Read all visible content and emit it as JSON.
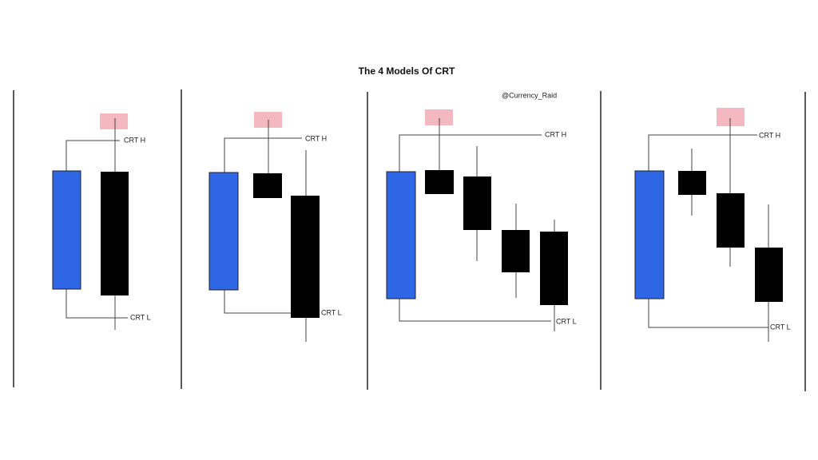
{
  "title": "The 4 Models Of CRT",
  "handle": "@Currency_Raid",
  "panels": [
    {
      "high_label": "CRT H",
      "low_label": "CRT L"
    },
    {
      "high_label": "CRT H",
      "low_label": "CRT L"
    },
    {
      "high_label": "CRT H",
      "low_label": "CRT L"
    },
    {
      "high_label": "CRT H",
      "low_label": "CRT L"
    }
  ]
}
